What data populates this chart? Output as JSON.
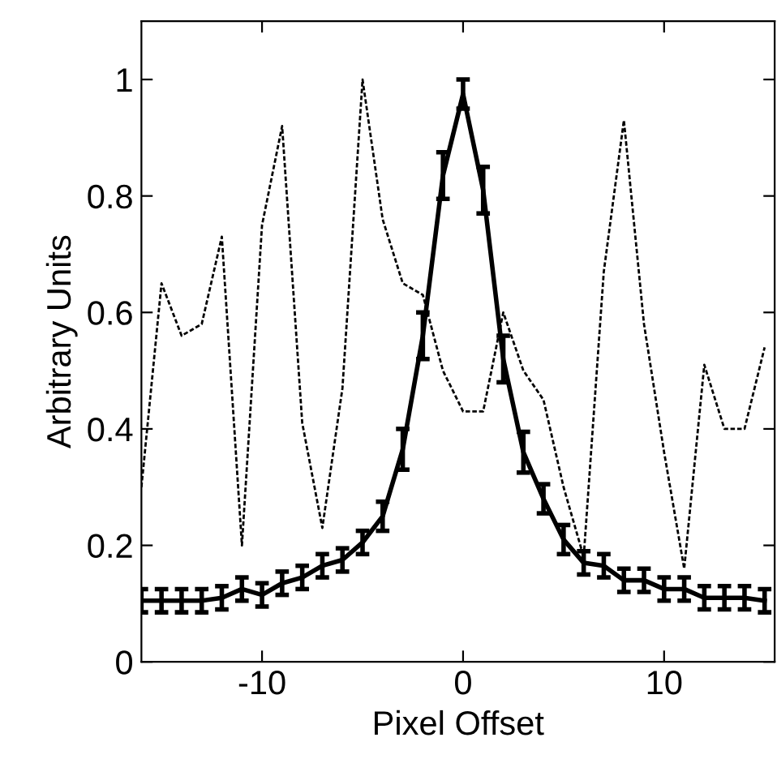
{
  "chart_data": {
    "type": "line",
    "xlabel": "Pixel Offset",
    "ylabel": "Arbitrary Units",
    "xlim": [
      -16,
      15.5
    ],
    "ylim": [
      0,
      1.1
    ],
    "xticks": [
      -10,
      0,
      10
    ],
    "yticks": [
      0,
      0.2,
      0.4,
      0.6,
      0.8,
      1
    ],
    "grid": false,
    "marker": "none",
    "series": [
      {
        "color": "#000000",
        "line_style": "dotted",
        "x": [
          -16,
          -15,
          -14,
          -13,
          -12,
          -11,
          -10,
          -9,
          -8,
          -7,
          -6,
          -5,
          -4,
          -3,
          -2,
          -1,
          0,
          1,
          2,
          3,
          4,
          5,
          6,
          7,
          8,
          9,
          10,
          11,
          12,
          13,
          14,
          15
        ],
        "values": [
          0.3,
          0.65,
          0.56,
          0.58,
          0.73,
          0.2,
          0.75,
          0.92,
          0.41,
          0.23,
          0.47,
          1.0,
          0.76,
          0.65,
          0.63,
          0.5,
          0.43,
          0.43,
          0.6,
          0.5,
          0.45,
          0.3,
          0.18,
          0.67,
          0.93,
          0.58,
          0.36,
          0.16,
          0.51,
          0.4,
          0.4,
          0.54
        ]
      },
      {
        "color": "#000000",
        "line_style": "solid",
        "x": [
          -16,
          -15,
          -14,
          -13,
          -12,
          -11,
          -10,
          -9,
          -8,
          -7,
          -6,
          -5,
          -4,
          -3,
          -2,
          -1,
          0,
          1,
          2,
          3,
          4,
          5,
          6,
          7,
          8,
          9,
          10,
          11,
          12,
          13,
          14,
          15
        ],
        "values": [
          0.105,
          0.105,
          0.105,
          0.105,
          0.11,
          0.125,
          0.115,
          0.135,
          0.145,
          0.165,
          0.175,
          0.205,
          0.25,
          0.365,
          0.56,
          0.835,
          0.975,
          0.81,
          0.52,
          0.36,
          0.28,
          0.21,
          0.17,
          0.165,
          0.14,
          0.14,
          0.125,
          0.125,
          0.11,
          0.11,
          0.11,
          0.105
        ],
        "errors": [
          0.02,
          0.02,
          0.02,
          0.02,
          0.02,
          0.02,
          0.02,
          0.02,
          0.02,
          0.02,
          0.02,
          0.02,
          0.025,
          0.035,
          0.04,
          0.04,
          0.025,
          0.04,
          0.04,
          0.035,
          0.025,
          0.025,
          0.02,
          0.02,
          0.02,
          0.02,
          0.02,
          0.02,
          0.02,
          0.02,
          0.02,
          0.02
        ]
      }
    ]
  }
}
